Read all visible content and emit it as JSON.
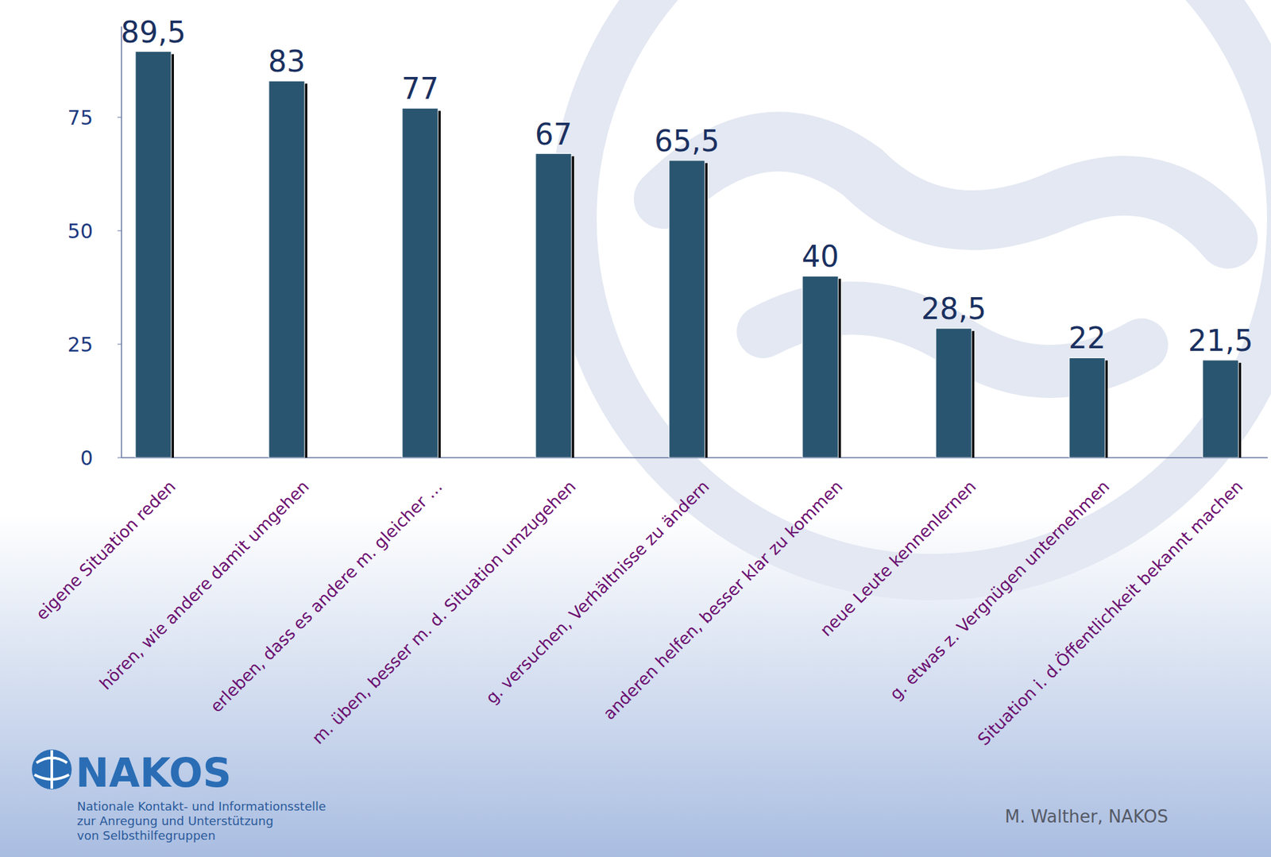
{
  "chart_data": {
    "type": "bar",
    "categories": [
      "eigene Situation reden",
      "hören, wie andere damit umgehen",
      "erleben, dass es andere m. gleicher …",
      "m. üben, besser m. d. Situation umzugehen",
      "g. versuchen, Verhältnisse zu ändern",
      "anderen helfen, besser klar zu kommen",
      "neue Leute kennenlernen",
      "g. etwas z. Vergnügen unternehmen",
      "Situation i. d.Öffentlichkeit bekannt machen"
    ],
    "values": [
      89.5,
      83,
      77,
      67,
      65.5,
      40,
      28.5,
      22,
      21.5
    ],
    "value_labels": [
      "89,5",
      "83",
      "77",
      "67",
      "65,5",
      "40",
      "28,5",
      "22",
      "21,5"
    ],
    "color": "#2a5570",
    "ylim": [
      0,
      95
    ],
    "yticks": [
      0,
      25,
      50,
      75
    ],
    "data_labels": true,
    "grid": false
  },
  "logo": {
    "name": "NAKOS",
    "subtitle": [
      "Nationale Kontakt- und Informationsstelle",
      "zur Anregung und Unterstützung",
      "von Selbsthilfegruppen"
    ]
  },
  "footer": "M. Walther, NAKOS"
}
